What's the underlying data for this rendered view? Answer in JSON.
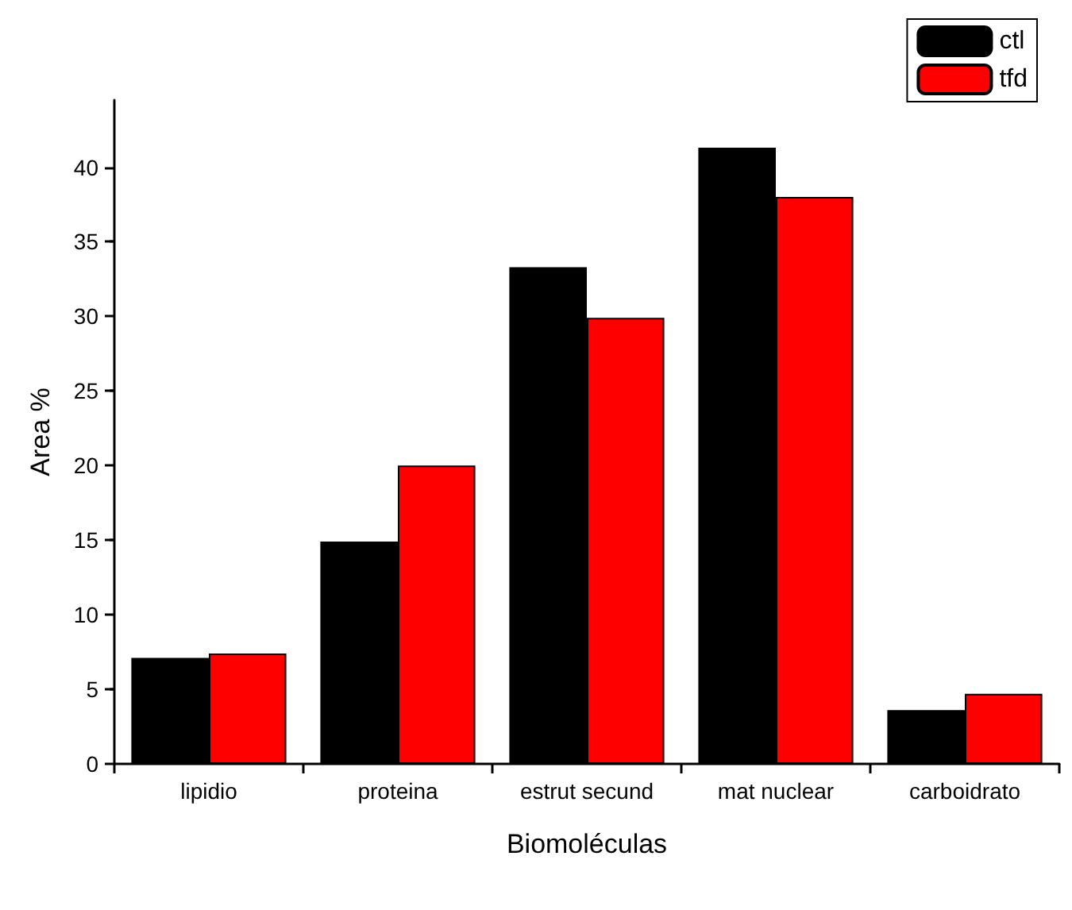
{
  "chart_data": {
    "type": "bar",
    "xlabel": "Biomoléculas",
    "ylabel": "Area %",
    "categories": [
      "lipidio",
      "proteina",
      "estrut secund",
      "mat nuclear",
      "carboidrato"
    ],
    "series": [
      {
        "name": "ctl",
        "color": "#000000",
        "values": [
          7.1,
          14.9,
          33.3,
          41.3,
          3.6
        ]
      },
      {
        "name": "tfd",
        "color": "#ff0000",
        "values": [
          7.4,
          20.0,
          29.9,
          38.0,
          4.7
        ]
      }
    ],
    "ylim": [
      0,
      44.5
    ],
    "yticks": [
      0,
      5,
      10,
      15,
      20,
      25,
      30,
      35,
      40
    ],
    "grid": false,
    "legend": "top right"
  }
}
